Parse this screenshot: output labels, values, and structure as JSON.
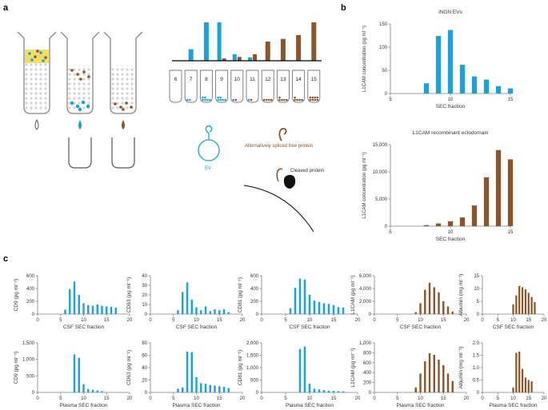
{
  "colors": {
    "blue": "#1ba1dc",
    "brown": "#8c5429",
    "yellow": "#f3de63",
    "axis": "#808080",
    "text": "#333333"
  },
  "panel_labels": {
    "a": "a",
    "b": "b",
    "c": "c"
  },
  "schematic": {
    "tube_numbers": [
      "6",
      "7",
      "8",
      "9",
      "10",
      "11",
      "12",
      "13",
      "14",
      "15"
    ],
    "tube_bars": [
      {
        "fraction": "7",
        "blue": 0.3
      },
      {
        "fraction": "8",
        "blue": 1.0
      },
      {
        "fraction": "9",
        "blue": 1.0,
        "brown": 0.06
      },
      {
        "fraction": "10",
        "blue": 0.17,
        "brown": 0.1
      },
      {
        "fraction": "11",
        "blue": 0.09,
        "brown": 0.17
      },
      {
        "fraction": "12",
        "brown": 0.5
      },
      {
        "fraction": "13",
        "brown": 0.57
      },
      {
        "fraction": "14",
        "brown": 0.67
      },
      {
        "fraction": "15",
        "brown": 1.0
      }
    ],
    "ev_label": "EV",
    "free_protein_label": "Alternatively spliced free protein",
    "cleaved_protein_label": "Cleaved protein"
  },
  "chart_data": [
    {
      "id": "b1",
      "type": "bar",
      "title": "iNGN EVs",
      "color": "blue",
      "xlabel": "SEC fraction",
      "ylabel": "L1CAM concentration (pg ml⁻¹)",
      "xlim": [
        5,
        15
      ],
      "ylim": [
        0,
        150
      ],
      "xticks": [
        "5",
        "10",
        "15"
      ],
      "yticks": [
        "0",
        "50",
        "100",
        "150"
      ],
      "x": [
        8,
        9,
        10,
        11,
        12,
        13,
        14,
        15
      ],
      "values": [
        22,
        124,
        137,
        62,
        37,
        30,
        16,
        11
      ]
    },
    {
      "id": "b2",
      "type": "bar",
      "title": "L1CAM recombinant ectodomain",
      "color": "brown",
      "xlabel": "SEC fraction",
      "ylabel": "L1CAM concentration (pg ml⁻¹)",
      "xlim": [
        5,
        15
      ],
      "ylim": [
        0,
        15000
      ],
      "xticks": [
        "5",
        "10",
        "15"
      ],
      "yticks": [
        "0",
        "5,000",
        "10,000",
        "15,000"
      ],
      "x": [
        8,
        9,
        10,
        11,
        12,
        13,
        14,
        15
      ],
      "values": [
        200,
        500,
        900,
        1600,
        3800,
        9000,
        14000,
        12300
      ]
    },
    {
      "id": "c1",
      "type": "bar",
      "title": "",
      "color": "blue",
      "xlabel": "CSF SEC fraction",
      "ylabel": "CD9 (pg ml⁻¹)",
      "xlim": [
        0,
        20
      ],
      "ylim": [
        0,
        600
      ],
      "xticks": [
        "0",
        "5",
        "10",
        "15",
        "20"
      ],
      "yticks": [
        "0",
        "200",
        "400",
        "600"
      ],
      "x": [
        6,
        7,
        8,
        9,
        10,
        11,
        12,
        13,
        14,
        15,
        16,
        17
      ],
      "values": [
        70,
        390,
        510,
        300,
        170,
        140,
        130,
        150,
        130,
        120,
        115,
        100
      ]
    },
    {
      "id": "c2",
      "type": "bar",
      "title": "",
      "color": "blue",
      "xlabel": "CSF SEC fraction",
      "ylabel": "CD63 (pg ml⁻¹)",
      "xlim": [
        0,
        20
      ],
      "ylim": [
        0,
        40
      ],
      "xticks": [
        "0",
        "5",
        "10",
        "15",
        "20"
      ],
      "yticks": [
        "0",
        "10",
        "20",
        "30",
        "40"
      ],
      "x": [
        6,
        7,
        8,
        9,
        10,
        11,
        12,
        13,
        14,
        15,
        16,
        17
      ],
      "values": [
        4,
        23,
        33,
        15,
        7,
        4,
        8,
        3,
        5,
        4,
        5,
        2
      ]
    },
    {
      "id": "c3",
      "type": "bar",
      "title": "",
      "color": "blue",
      "xlabel": "CSF SEC fraction",
      "ylabel": "CD81 (pg ml⁻¹)",
      "xlim": [
        0,
        20
      ],
      "ylim": [
        0,
        600
      ],
      "xticks": [
        "0",
        "5",
        "10",
        "15",
        "20"
      ],
      "yticks": [
        "0",
        "200",
        "400",
        "600"
      ],
      "x": [
        6,
        7,
        8,
        9,
        10,
        11,
        12,
        13,
        14,
        15,
        16,
        17
      ],
      "values": [
        90,
        410,
        555,
        540,
        300,
        210,
        190,
        170,
        160,
        140,
        110,
        100
      ]
    },
    {
      "id": "c4",
      "type": "bar",
      "title": "",
      "color": "brown",
      "xlabel": "CSF SEC fraction",
      "ylabel": "L1CAM (pg ml⁻¹)",
      "xlim": [
        0,
        20
      ],
      "ylim": [
        0,
        6000
      ],
      "xticks": [
        "0",
        "5",
        "10",
        "15",
        "20"
      ],
      "yticks": [
        "0",
        "2,000",
        "4,000",
        "6,000"
      ],
      "x": [
        9,
        10,
        11,
        12,
        13,
        14,
        15,
        16,
        17
      ],
      "values": [
        300,
        1700,
        3800,
        4900,
        4200,
        3400,
        2000,
        1200,
        400
      ]
    },
    {
      "id": "c5",
      "type": "bar",
      "title": "",
      "color": "brown",
      "xlabel": "CSF SEC fraction",
      "ylabel": "Albumin (mg ml⁻¹)",
      "xlim": [
        0,
        20
      ],
      "ylim": [
        0,
        15
      ],
      "xticks": [
        "0",
        "5",
        "10",
        "15",
        "20"
      ],
      "yticks": [
        "0",
        "5",
        "10",
        "15"
      ],
      "x": [
        10,
        11,
        12,
        13,
        14,
        15,
        16,
        17
      ],
      "values": [
        3.8,
        7.3,
        11,
        10.5,
        9.7,
        8.3,
        6.7,
        4.7
      ]
    },
    {
      "id": "c6",
      "type": "bar",
      "title": "",
      "color": "blue",
      "xlabel": "Plasma SEC fraction",
      "ylabel": "CD9 (pg ml⁻¹)",
      "xlim": [
        0,
        20
      ],
      "ylim": [
        0,
        1500
      ],
      "xticks": [
        "0",
        "5",
        "10",
        "15",
        "20"
      ],
      "yticks": [
        "0",
        "500",
        "1,000",
        "1,500"
      ],
      "x": [
        8,
        9,
        10,
        11,
        12,
        13,
        14
      ],
      "values": [
        1150,
        1050,
        250,
        100,
        80,
        60,
        40
      ]
    },
    {
      "id": "c7",
      "type": "bar",
      "title": "",
      "color": "blue",
      "xlabel": "Plasma SEC fraction",
      "ylabel": "CD63 (pg ml⁻¹)",
      "xlim": [
        0,
        20
      ],
      "ylim": [
        0,
        80
      ],
      "xticks": [
        "0",
        "5",
        "10",
        "15",
        "20"
      ],
      "yticks": [
        "0",
        "20",
        "40",
        "60",
        "80"
      ],
      "x": [
        6,
        7,
        8,
        9,
        10,
        11,
        12,
        13,
        14,
        15,
        16,
        17
      ],
      "values": [
        6,
        8,
        66,
        65,
        25,
        15,
        14,
        12,
        11,
        10,
        9,
        7
      ]
    },
    {
      "id": "c8",
      "type": "bar",
      "title": "",
      "color": "blue",
      "xlabel": "Plasma SEC fraction",
      "ylabel": "CD81 (pg ml⁻¹)",
      "xlim": [
        0,
        20
      ],
      "ylim": [
        0,
        2000
      ],
      "xticks": [
        "0",
        "5",
        "10",
        "15",
        "20"
      ],
      "yticks": [
        "0",
        "500",
        "1,000",
        "1,500",
        "2,000"
      ],
      "x": [
        8,
        9,
        10,
        11,
        12,
        13,
        14,
        15,
        16,
        17
      ],
      "values": [
        1750,
        1850,
        350,
        150,
        120,
        90,
        70,
        60,
        50,
        40
      ]
    },
    {
      "id": "c9",
      "type": "bar",
      "title": "",
      "color": "brown",
      "xlabel": "Plasma SEC fraction",
      "ylabel": "L1CAM (pg ml⁻¹)",
      "xlim": [
        0,
        20
      ],
      "ylim": [
        0,
        1000
      ],
      "xticks": [
        "0",
        "5",
        "10",
        "15",
        "20"
      ],
      "yticks": [
        "0",
        "200",
        "400",
        "600",
        "800",
        "1,000"
      ],
      "x": [
        9,
        10,
        11,
        12,
        13,
        14,
        15,
        16,
        17
      ],
      "values": [
        100,
        380,
        630,
        790,
        760,
        660,
        550,
        380,
        230
      ]
    },
    {
      "id": "c10",
      "type": "bar",
      "title": "",
      "color": "brown",
      "xlabel": "Plasma SEC fraction",
      "ylabel": "Albumin (mg ml⁻¹)",
      "xlim": [
        0,
        20
      ],
      "ylim": [
        0,
        2
      ],
      "xticks": [
        "0",
        "5",
        "10",
        "15",
        "20"
      ],
      "yticks": [
        "0",
        "0.5",
        "1.0",
        "1.5",
        "2.0"
      ],
      "x": [
        10,
        11,
        12,
        13,
        14,
        15,
        16
      ],
      "values": [
        0.2,
        1.6,
        1.65,
        0.95,
        0.6,
        0.5,
        0.45
      ]
    }
  ]
}
